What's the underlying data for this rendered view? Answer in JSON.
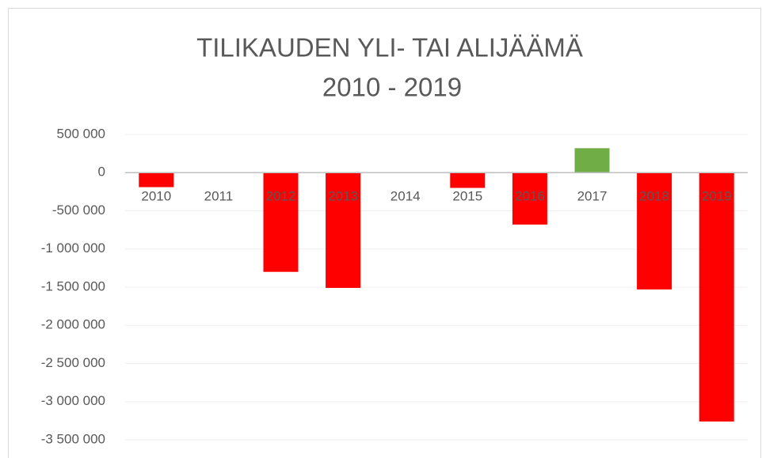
{
  "chart_data": {
    "type": "bar",
    "title": [
      "TILIKAUDEN YLI- TAI ALIJÄÄMÄ",
      "2010 - 2019"
    ],
    "categories": [
      "2010",
      "2011",
      "2012",
      "2013",
      "2014",
      "2015",
      "2016",
      "2017",
      "2018",
      "2019"
    ],
    "values": [
      -190000,
      0,
      -1300000,
      -1510000,
      0,
      -200000,
      -680000,
      320000,
      -1530000,
      -3260000
    ],
    "colors": [
      "#ff0000",
      "#ff0000",
      "#ff0000",
      "#ff0000",
      "#ff0000",
      "#ff0000",
      "#ff0000",
      "#70ad47",
      "#ff0000",
      "#ff0000"
    ],
    "ylim": [
      -3500000,
      500000
    ],
    "yticks": [
      {
        "value": 500000,
        "label": "500 000"
      },
      0,
      {
        "value": -500000,
        "label": "-500 000"
      },
      {
        "value": -1000000,
        "label": "-1 000 000"
      },
      {
        "value": -1500000,
        "label": "-1 500 000"
      },
      {
        "value": -2000000,
        "label": "-2 000 000"
      },
      {
        "value": -2500000,
        "label": "-2 500 000"
      },
      {
        "value": -3000000,
        "label": "-3 000 000"
      },
      {
        "value": -3500000,
        "label": "-3 500 000"
      }
    ],
    "grid": true
  }
}
